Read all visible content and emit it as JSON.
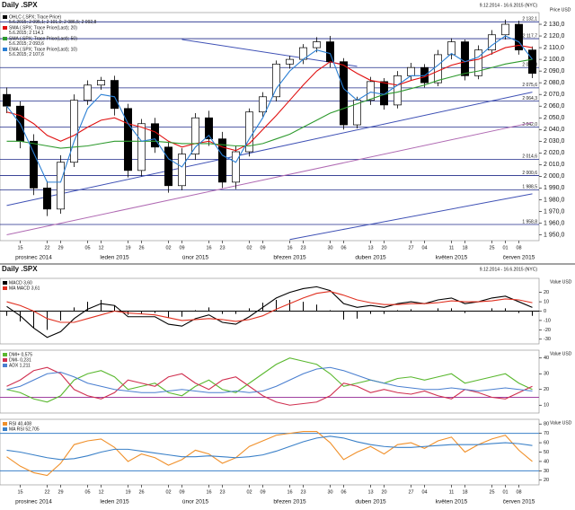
{
  "chart_data": [
    {
      "type": "candlestick",
      "title": "Daily .SPX",
      "subtitle": "9.12.2014 - 16.6.2015 (NYC)",
      "y_label": "Price USD",
      "categories": [
        null,
        "15",
        null,
        "22",
        "29",
        null,
        "05",
        "12",
        null,
        "19",
        "26",
        null,
        "02",
        "09",
        null,
        "16",
        "23",
        null,
        "02",
        "09",
        null,
        "16",
        "23",
        null,
        "30",
        "06",
        null,
        "13",
        "20",
        null,
        "27",
        "04",
        null,
        "11",
        "18",
        null,
        "25",
        "01",
        "08",
        null
      ],
      "month_categories": [
        null,
        null,
        "prosinec 2014",
        null,
        null,
        null,
        null,
        null,
        "leden 2015",
        null,
        null,
        null,
        null,
        null,
        "únor 2015",
        null,
        null,
        null,
        null,
        null,
        null,
        "březen 2015",
        null,
        null,
        null,
        null,
        null,
        "duben 2015",
        null,
        null,
        null,
        null,
        null,
        "květen 2015",
        null,
        null,
        null,
        null,
        "červen 2015",
        null
      ],
      "ohlc": {
        "name": "OHLC (.SPX; Trace Price)",
        "detail": "5.6.2015; 2 095,1; 2 101,0; 2 086,5; 2 092,8",
        "up_color": "#ffffff",
        "down_color": "#000000",
        "open": [
          2070,
          2060,
          2030,
          1990,
          1972,
          2012,
          2065,
          2078,
          2082,
          2058,
          2005,
          2045,
          2025,
          1992,
          2019,
          2050,
          2032,
          1995,
          2021,
          2055,
          2068,
          2096,
          2100,
          2110,
          2115,
          2098,
          2044,
          2065,
          2081,
          2061,
          2086,
          2093,
          2080,
          2104,
          2115,
          2086,
          2108,
          2121,
          2130,
          2108
        ],
        "high": [
          2076,
          2064,
          2036,
          1996,
          2018,
          2070,
          2082,
          2085,
          2086,
          2062,
          2049,
          2050,
          2030,
          2024,
          2054,
          2056,
          2038,
          2026,
          2058,
          2072,
          2099,
          2103,
          2113,
          2119,
          2120,
          2101,
          2068,
          2085,
          2084,
          2090,
          2097,
          2096,
          2108,
          2118,
          2117,
          2112,
          2125,
          2134,
          2133,
          2111
        ],
        "low": [
          2054,
          2024,
          1984,
          1966,
          1968,
          2008,
          2061,
          2074,
          2052,
          1999,
          2000,
          2020,
          1986,
          1988,
          2014,
          2026,
          1990,
          1989,
          2017,
          2051,
          2064,
          2092,
          2096,
          2106,
          2093,
          2040,
          2041,
          2061,
          2057,
          2058,
          2082,
          2076,
          2077,
          2100,
          2082,
          2083,
          2104,
          2117,
          2104,
          2084
        ],
        "close": [
          2060,
          2030,
          1990,
          1972,
          2012,
          2065,
          2078,
          2082,
          2058,
          2005,
          2045,
          2025,
          1992,
          2019,
          2050,
          2032,
          1995,
          2021,
          2055,
          2068,
          2096,
          2100,
          2110,
          2115,
          2098,
          2044,
          2065,
          2081,
          2061,
          2086,
          2093,
          2080,
          2104,
          2115,
          2086,
          2108,
          2121,
          2130,
          2108,
          2088
        ]
      },
      "series": [
        {
          "name": "SMA (.SPX; Trace Price(Last); 20)",
          "detail": "5.6.2015; 2 114,1",
          "color": "#e01010",
          "values": [
            2055,
            2052,
            2045,
            2035,
            2030,
            2035,
            2042,
            2048,
            2050,
            2045,
            2042,
            2038,
            2030,
            2025,
            2028,
            2030,
            2025,
            2022,
            2028,
            2040,
            2052,
            2065,
            2078,
            2090,
            2098,
            2095,
            2088,
            2082,
            2080,
            2078,
            2082,
            2085,
            2090,
            2095,
            2098,
            2100,
            2105,
            2110,
            2112,
            2110
          ]
        },
        {
          "name": "SMA (.SPX; Trace Price(Last); 50)",
          "detail": "5.6.2015; 2 093,6",
          "color": "#2e9a2e",
          "values": [
            2030,
            2030,
            2028,
            2026,
            2024,
            2025,
            2026,
            2028,
            2030,
            2030,
            2030,
            2030,
            2029,
            2028,
            2028,
            2028,
            2027,
            2026,
            2026,
            2028,
            2032,
            2036,
            2042,
            2048,
            2054,
            2058,
            2062,
            2066,
            2070,
            2072,
            2075,
            2078,
            2082,
            2085,
            2088,
            2090,
            2093,
            2096,
            2098,
            2100
          ]
        },
        {
          "name": "EMA (.SPX; Trace Price(Last); 10)",
          "detail": "5.6.2015; 2 107,6",
          "color": "#2a7fd4",
          "values": [
            2060,
            2045,
            2020,
            1995,
            1995,
            2030,
            2058,
            2070,
            2068,
            2045,
            2030,
            2032,
            2015,
            2008,
            2025,
            2035,
            2018,
            2012,
            2032,
            2050,
            2075,
            2090,
            2100,
            2108,
            2105,
            2075,
            2065,
            2072,
            2070,
            2078,
            2086,
            2086,
            2095,
            2105,
            2098,
            2102,
            2112,
            2120,
            2115,
            2100
          ]
        }
      ],
      "trend_lines": [
        {
          "color": "#3f51b5",
          "x": [
            0,
            39
          ],
          "y": [
            1975,
            2072
          ]
        },
        {
          "color": "#3f51b5",
          "x": [
            21,
            39
          ],
          "y": [
            1946,
            1985
          ]
        },
        {
          "color": "#3f51b5",
          "x": [
            13,
            26
          ],
          "y": [
            2117,
            2094
          ]
        },
        {
          "color": "#b06ab3",
          "x": [
            0,
            39
          ],
          "y": [
            1950,
            2046
          ]
        }
      ],
      "levels": [
        {
          "value": 2132.1,
          "label": "2 132,1"
        },
        {
          "value": 2117.7,
          "label": "2 117,7"
        },
        {
          "value": 2093.0,
          "label": "2 093,0"
        },
        {
          "value": 2075.6,
          "label": "2 075,6"
        },
        {
          "value": 2064.3,
          "label": "2 064,3"
        },
        {
          "value": 2042.0,
          "label": "2 042,0"
        },
        {
          "value": 2014.6,
          "label": "2 014,6"
        },
        {
          "value": 2000.6,
          "label": "2 000,6"
        },
        {
          "value": 1988.5,
          "label": "1 988,5"
        },
        {
          "value": 1958.8,
          "label": "1 958,8"
        }
      ],
      "level_color": "#1f2a8a",
      "ylim": [
        1945,
        2140
      ],
      "yticks": [
        {
          "value": 2130,
          "label": "2 130,0"
        },
        {
          "value": 2120,
          "label": "2 120,0"
        },
        {
          "value": 2110,
          "label": "2 110,0"
        },
        {
          "value": 2100,
          "label": "2 100,0"
        },
        {
          "value": 2090,
          "label": "2 090,0"
        },
        {
          "value": 2080,
          "label": "2 080,0"
        },
        {
          "value": 2070,
          "label": "2 070,0"
        },
        {
          "value": 2060,
          "label": "2 060,0"
        },
        {
          "value": 2050,
          "label": "2 050,0"
        },
        {
          "value": 2040,
          "label": "2 040,0"
        },
        {
          "value": 2030,
          "label": "2 030,0"
        },
        {
          "value": 2020,
          "label": "2 020,0"
        },
        {
          "value": 2010,
          "label": "2 010,0"
        },
        {
          "value": 2000,
          "label": "2 000,0"
        },
        {
          "value": 1990,
          "label": "1 990,0"
        },
        {
          "value": 1980,
          "label": "1 980,0"
        },
        {
          "value": 1970,
          "label": "1 970,0"
        },
        {
          "value": 1960,
          "label": "1 960,0"
        },
        {
          "value": 1950,
          "label": "1 950,0"
        }
      ]
    },
    {
      "type": "line",
      "title": "Daily .SPX",
      "subtitle": "9.12.2014 - 16.6.2015 (NYC)",
      "y_label": "Value USD",
      "series": [
        {
          "type": "bar",
          "color": "#000000",
          "values": [
            -5,
            -11,
            -18,
            -20,
            -10,
            4,
            10,
            12,
            6,
            -4,
            -3,
            -2,
            -7,
            -6,
            1,
            4,
            -3,
            -3,
            3,
            9,
            12,
            12,
            10,
            7,
            1,
            -9,
            -8,
            -3,
            -3,
            1,
            2,
            0,
            3,
            3,
            -2,
            0,
            3,
            3,
            -2,
            -5
          ]
        },
        {
          "name": "MACD 3,60",
          "color": "#000000",
          "values": [
            5,
            -5,
            -18,
            -28,
            -22,
            -8,
            2,
            8,
            6,
            -6,
            -6,
            -6,
            -14,
            -16,
            -8,
            -4,
            -12,
            -14,
            -6,
            4,
            14,
            20,
            24,
            26,
            22,
            8,
            4,
            6,
            4,
            8,
            10,
            8,
            12,
            14,
            8,
            10,
            14,
            16,
            10,
            4
          ]
        },
        {
          "name": "MA MACD 3,61",
          "color": "#e03020",
          "values": [
            10,
            6,
            0,
            -8,
            -12,
            -12,
            -8,
            -4,
            0,
            -2,
            -3,
            -4,
            -7,
            -10,
            -9,
            -8,
            -9,
            -11,
            -9,
            -5,
            2,
            8,
            14,
            19,
            21,
            17,
            12,
            9,
            7,
            7,
            8,
            8,
            9,
            11,
            10,
            10,
            11,
            13,
            12,
            9
          ]
        }
      ],
      "reference_lines": [
        {
          "value": 0,
          "color": "#000000"
        }
      ],
      "ylim": [
        -35,
        35
      ],
      "yticks": [
        20,
        10,
        0,
        -10,
        -20,
        -30
      ]
    },
    {
      "type": "line",
      "y_label": "Value USD",
      "series": [
        {
          "name": "DMI+ 0,575",
          "color": "#5ab82f",
          "values": [
            20,
            18,
            14,
            12,
            16,
            26,
            30,
            32,
            28,
            20,
            22,
            24,
            18,
            16,
            22,
            26,
            20,
            18,
            24,
            30,
            36,
            40,
            38,
            36,
            30,
            22,
            24,
            26,
            24,
            27,
            28,
            26,
            28,
            30,
            24,
            26,
            28,
            30,
            24,
            20
          ]
        },
        {
          "name": "DMI- 0,231",
          "color": "#d03050",
          "values": [
            22,
            26,
            32,
            34,
            30,
            20,
            16,
            14,
            18,
            26,
            24,
            22,
            28,
            30,
            24,
            20,
            26,
            28,
            22,
            16,
            12,
            10,
            11,
            12,
            16,
            24,
            22,
            18,
            20,
            18,
            17,
            19,
            16,
            14,
            20,
            18,
            15,
            14,
            18,
            22
          ]
        },
        {
          "name": "ADX 1,211",
          "color": "#4a7fd0",
          "values": [
            20,
            22,
            26,
            30,
            31,
            28,
            24,
            22,
            20,
            19,
            18,
            18,
            19,
            20,
            19,
            18,
            18,
            19,
            18,
            19,
            22,
            26,
            30,
            33,
            34,
            32,
            29,
            26,
            24,
            22,
            21,
            20,
            20,
            21,
            20,
            19,
            20,
            21,
            20,
            19
          ]
        }
      ],
      "reference_lines": [
        {
          "value": 15,
          "color": "#a040a0"
        }
      ],
      "ylim": [
        5,
        45
      ],
      "yticks": [
        40,
        30,
        20,
        10
      ]
    },
    {
      "type": "line",
      "y_label": "Value USD",
      "categories": [
        null,
        "15",
        null,
        "22",
        "29",
        null,
        "05",
        "12",
        null,
        "19",
        "26",
        null,
        "02",
        "09",
        null,
        "16",
        "23",
        null,
        "02",
        "09",
        null,
        "16",
        "23",
        null,
        "30",
        "06",
        null,
        "13",
        "20",
        null,
        "27",
        "04",
        null,
        "11",
        "18",
        null,
        "25",
        "01",
        "08",
        null
      ],
      "month_categories": [
        null,
        null,
        "prosinec 2014",
        null,
        null,
        null,
        null,
        null,
        "leden 2015",
        null,
        null,
        null,
        null,
        null,
        "únor 2015",
        null,
        null,
        null,
        null,
        null,
        null,
        "březen 2015",
        null,
        null,
        null,
        null,
        null,
        "duben 2015",
        null,
        null,
        null,
        null,
        null,
        "květen 2015",
        null,
        null,
        null,
        null,
        "červen 2015",
        null
      ],
      "series": [
        {
          "name": "RSI 40,408",
          "color": "#f0902a",
          "values": [
            45,
            35,
            28,
            25,
            38,
            58,
            62,
            64,
            55,
            40,
            48,
            44,
            36,
            42,
            52,
            48,
            38,
            44,
            56,
            62,
            68,
            70,
            72,
            72,
            60,
            42,
            50,
            56,
            48,
            58,
            60,
            54,
            62,
            66,
            50,
            58,
            64,
            68,
            52,
            40
          ]
        },
        {
          "name": "MA RSI 52,705",
          "color": "#3a80c8",
          "values": [
            52,
            50,
            47,
            44,
            42,
            43,
            46,
            50,
            53,
            53,
            51,
            49,
            47,
            45,
            45,
            46,
            45,
            44,
            45,
            47,
            51,
            56,
            61,
            65,
            67,
            65,
            61,
            58,
            56,
            55,
            55,
            56,
            57,
            58,
            58,
            58,
            59,
            60,
            59,
            57
          ]
        }
      ],
      "reference_lines": [
        {
          "value": 70,
          "color": "#3a80c8"
        },
        {
          "value": 30,
          "color": "#3a80c8"
        }
      ],
      "ylim": [
        15,
        85
      ],
      "yticks": [
        80,
        70,
        60,
        50,
        40,
        30,
        20
      ]
    }
  ]
}
